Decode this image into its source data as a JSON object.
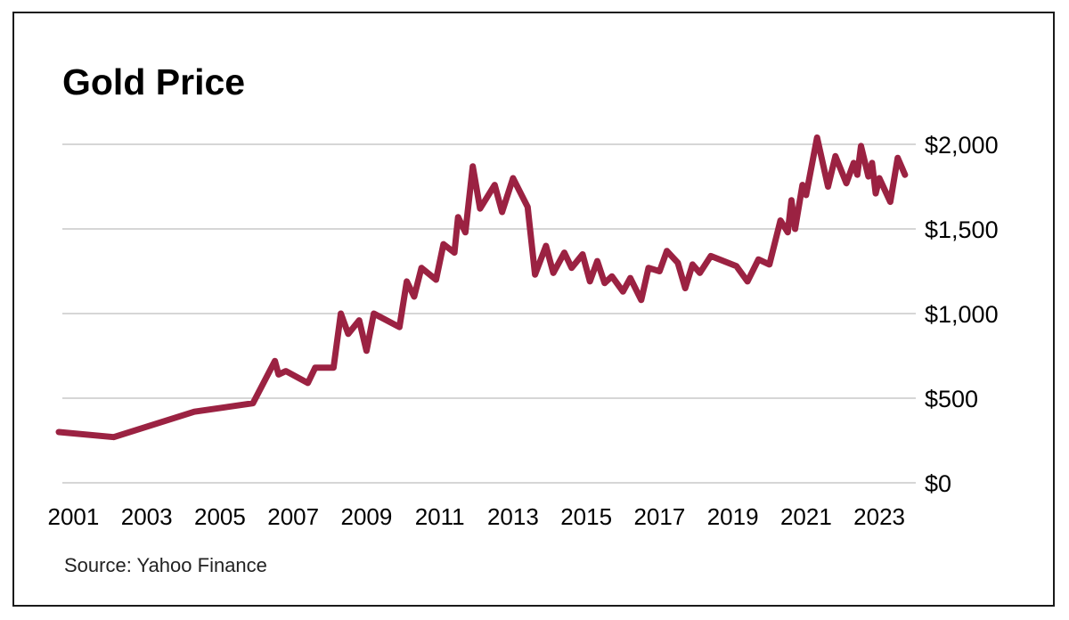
{
  "chart_data": {
    "type": "line",
    "title": "Gold Price",
    "source": "Source: Yahoo Finance",
    "xlabel": "",
    "ylabel": "",
    "ylim": [
      0,
      2000
    ],
    "xlim": [
      2000.6,
      2023.8
    ],
    "grid": true,
    "y_ticks": [
      {
        "value": 0,
        "label": "$0"
      },
      {
        "value": 500,
        "label": "$500"
      },
      {
        "value": 1000,
        "label": "$1,000"
      },
      {
        "value": 1500,
        "label": "$1,500"
      },
      {
        "value": 2000,
        "label": "$2,000"
      }
    ],
    "x_ticks": [
      {
        "value": 2001,
        "label": "2001"
      },
      {
        "value": 2003,
        "label": "2003"
      },
      {
        "value": 2005,
        "label": "2005"
      },
      {
        "value": 2007,
        "label": "2007"
      },
      {
        "value": 2009,
        "label": "2009"
      },
      {
        "value": 2011,
        "label": "2011"
      },
      {
        "value": 2013,
        "label": "2013"
      },
      {
        "value": 2015,
        "label": "2015"
      },
      {
        "value": 2017,
        "label": "2017"
      },
      {
        "value": 2019,
        "label": "2019"
      },
      {
        "value": 2021,
        "label": "2021"
      },
      {
        "value": 2023,
        "label": "2023"
      }
    ],
    "series": [
      {
        "name": "Gold Price",
        "color": "#9b2242",
        "x": [
          2000.6,
          2002.1,
          2004.3,
          2005.9,
          2006.5,
          2006.6,
          2006.8,
          2007.4,
          2007.6,
          2008.1,
          2008.3,
          2008.5,
          2008.8,
          2009.0,
          2009.2,
          2009.9,
          2010.1,
          2010.3,
          2010.5,
          2010.9,
          2011.1,
          2011.4,
          2011.5,
          2011.7,
          2011.9,
          2012.1,
          2012.5,
          2012.7,
          2013.0,
          2013.4,
          2013.6,
          2013.9,
          2014.1,
          2014.4,
          2014.6,
          2014.9,
          2015.1,
          2015.3,
          2015.5,
          2015.7,
          2016.0,
          2016.2,
          2016.5,
          2016.7,
          2017.0,
          2017.2,
          2017.5,
          2017.7,
          2017.9,
          2018.1,
          2018.4,
          2019.1,
          2019.4,
          2019.7,
          2020.0,
          2020.3,
          2020.5,
          2020.6,
          2020.7,
          2020.9,
          2021.0,
          2021.3,
          2021.6,
          2021.8,
          2022.1,
          2022.3,
          2022.4,
          2022.5,
          2022.7,
          2022.8,
          2022.9,
          2023.0,
          2023.3,
          2023.5,
          2023.7
        ],
        "values": [
          300,
          270,
          420,
          470,
          720,
          640,
          660,
          590,
          680,
          680,
          1000,
          880,
          960,
          780,
          1000,
          920,
          1190,
          1100,
          1270,
          1200,
          1410,
          1360,
          1570,
          1480,
          1870,
          1620,
          1760,
          1600,
          1800,
          1630,
          1230,
          1400,
          1240,
          1360,
          1270,
          1350,
          1190,
          1310,
          1180,
          1220,
          1130,
          1210,
          1080,
          1270,
          1250,
          1370,
          1300,
          1150,
          1290,
          1240,
          1340,
          1280,
          1190,
          1320,
          1290,
          1550,
          1480,
          1670,
          1500,
          1760,
          1700,
          2040,
          1750,
          1930,
          1770,
          1890,
          1820,
          1990,
          1810,
          1890,
          1710,
          1800,
          1660,
          1920,
          1820
        ]
      }
    ]
  }
}
